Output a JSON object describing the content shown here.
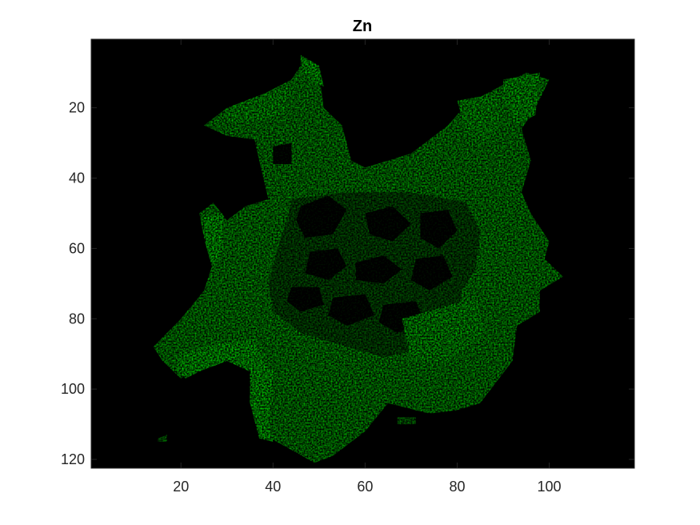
{
  "chart_data": {
    "type": "heatmap",
    "title": "Zn",
    "xlabel": "",
    "ylabel": "",
    "colormap": [
      "#000000",
      "#00ff00"
    ],
    "xlim": [
      0.5,
      118.5
    ],
    "ylim": [
      0.5,
      122.5
    ],
    "y_reversed": true,
    "x_ticks": [
      20,
      40,
      60,
      80,
      100
    ],
    "y_ticks": [
      20,
      40,
      60,
      80,
      100,
      120
    ],
    "x_tick_labels": [
      "20",
      "40",
      "60",
      "80",
      "100"
    ],
    "y_tick_labels": [
      "20",
      "40",
      "60",
      "80",
      "100",
      "120"
    ],
    "grid": false,
    "legend": "none",
    "intensity_regions": [
      {
        "shape": "polygon",
        "level": 0.8,
        "points": [
          [
            47,
            6
          ],
          [
            50,
            10
          ],
          [
            51,
            20
          ],
          [
            55,
            25
          ],
          [
            57,
            35
          ],
          [
            60,
            37
          ],
          [
            70,
            33
          ],
          [
            78,
            25
          ],
          [
            82,
            19
          ],
          [
            95,
            10
          ],
          [
            100,
            12
          ],
          [
            97,
            20
          ],
          [
            94,
            26
          ],
          [
            96,
            35
          ],
          [
            94,
            44
          ],
          [
            96,
            50
          ],
          [
            100,
            58
          ],
          [
            99,
            63
          ],
          [
            103,
            68
          ],
          [
            98,
            72
          ],
          [
            98,
            78
          ],
          [
            93,
            82
          ],
          [
            92,
            92
          ],
          [
            85,
            104
          ],
          [
            80,
            106
          ],
          [
            74,
            107
          ],
          [
            65,
            104
          ],
          [
            60,
            112
          ],
          [
            53,
            119
          ],
          [
            49,
            121
          ],
          [
            45,
            118
          ],
          [
            38,
            113
          ],
          [
            37,
            105
          ],
          [
            37,
            98
          ],
          [
            35,
            92
          ],
          [
            28,
            88
          ],
          [
            22,
            95
          ],
          [
            20,
            97
          ],
          [
            16,
            92
          ],
          [
            14,
            88
          ],
          [
            20,
            80
          ],
          [
            25,
            72
          ],
          [
            27,
            64
          ],
          [
            25,
            57
          ],
          [
            24,
            50
          ],
          [
            27,
            47
          ],
          [
            30,
            52
          ],
          [
            34,
            48
          ],
          [
            39,
            46
          ],
          [
            37,
            35
          ],
          [
            36,
            29
          ],
          [
            30,
            28
          ],
          [
            25,
            25
          ],
          [
            30,
            20
          ],
          [
            38,
            16
          ],
          [
            44,
            12
          ]
        ]
      },
      {
        "shape": "polygon",
        "level": 0.45,
        "points": [
          [
            44,
            46
          ],
          [
            56,
            44
          ],
          [
            70,
            44
          ],
          [
            82,
            47
          ],
          [
            85,
            55
          ],
          [
            84,
            66
          ],
          [
            81,
            72
          ],
          [
            80,
            81
          ],
          [
            74,
            88
          ],
          [
            64,
            91
          ],
          [
            56,
            88
          ],
          [
            46,
            84
          ],
          [
            40,
            78
          ],
          [
            39,
            70
          ],
          [
            41,
            60
          ],
          [
            43,
            52
          ]
        ]
      },
      {
        "shape": "polygon",
        "level": 0.05,
        "points": [
          [
            46,
            48
          ],
          [
            52,
            45
          ],
          [
            56,
            49
          ],
          [
            53,
            56
          ],
          [
            47,
            57
          ],
          [
            45,
            52
          ]
        ]
      },
      {
        "shape": "polygon",
        "level": 0.05,
        "points": [
          [
            60,
            50
          ],
          [
            66,
            48
          ],
          [
            70,
            53
          ],
          [
            66,
            58
          ],
          [
            61,
            56
          ]
        ]
      },
      {
        "shape": "polygon",
        "level": 0.05,
        "points": [
          [
            72,
            50
          ],
          [
            78,
            49
          ],
          [
            80,
            55
          ],
          [
            76,
            60
          ],
          [
            72,
            57
          ]
        ]
      },
      {
        "shape": "polygon",
        "level": 0.05,
        "points": [
          [
            48,
            61
          ],
          [
            54,
            60
          ],
          [
            56,
            65
          ],
          [
            52,
            69
          ],
          [
            47,
            67
          ]
        ]
      },
      {
        "shape": "polygon",
        "level": 0.05,
        "points": [
          [
            58,
            64
          ],
          [
            64,
            62
          ],
          [
            68,
            66
          ],
          [
            64,
            70
          ],
          [
            58,
            69
          ]
        ]
      },
      {
        "shape": "polygon",
        "level": 0.05,
        "points": [
          [
            71,
            63
          ],
          [
            77,
            62
          ],
          [
            79,
            68
          ],
          [
            74,
            72
          ],
          [
            70,
            69
          ]
        ]
      },
      {
        "shape": "polygon",
        "level": 0.05,
        "points": [
          [
            44,
            71
          ],
          [
            50,
            71
          ],
          [
            51,
            76
          ],
          [
            46,
            78
          ],
          [
            43,
            75
          ]
        ]
      },
      {
        "shape": "polygon",
        "level": 0.05,
        "points": [
          [
            53,
            74
          ],
          [
            60,
            73
          ],
          [
            62,
            79
          ],
          [
            56,
            82
          ],
          [
            52,
            79
          ]
        ]
      },
      {
        "shape": "polygon",
        "level": 0.05,
        "points": [
          [
            64,
            76
          ],
          [
            71,
            75
          ],
          [
            73,
            81
          ],
          [
            67,
            84
          ],
          [
            63,
            81
          ]
        ]
      },
      {
        "shape": "polygon",
        "level": 0.05,
        "points": [
          [
            40,
            31
          ],
          [
            44,
            30
          ],
          [
            44,
            36
          ],
          [
            40,
            36
          ]
        ]
      },
      {
        "shape": "polygon",
        "level": 1.0,
        "points": [
          [
            25,
            51
          ],
          [
            29,
            50
          ],
          [
            29,
            60
          ],
          [
            27,
            66
          ],
          [
            26,
            62
          ],
          [
            25,
            57
          ]
        ]
      },
      {
        "shape": "polygon",
        "level": 1.0,
        "points": [
          [
            20,
            90
          ],
          [
            28,
            87
          ],
          [
            36,
            86
          ],
          [
            38,
            92
          ],
          [
            35,
            95
          ],
          [
            30,
            92
          ],
          [
            24,
            95
          ],
          [
            21,
            97
          ],
          [
            19,
            94
          ]
        ]
      },
      {
        "shape": "polygon",
        "level": 1.0,
        "points": [
          [
            36,
            90
          ],
          [
            40,
            95
          ],
          [
            39,
            110
          ],
          [
            40,
            115
          ],
          [
            37,
            114
          ],
          [
            35,
            104
          ],
          [
            35,
            95
          ]
        ]
      },
      {
        "shape": "polygon",
        "level": 1.0,
        "points": [
          [
            46,
            5
          ],
          [
            50,
            8
          ],
          [
            51,
            14
          ],
          [
            48,
            12
          ],
          [
            46,
            8
          ]
        ]
      },
      {
        "shape": "polygon",
        "level": 0.95,
        "points": [
          [
            90,
            12
          ],
          [
            98,
            10
          ],
          [
            97,
            22
          ],
          [
            93,
            25
          ],
          [
            90,
            18
          ]
        ]
      },
      {
        "shape": "polygon",
        "level": 0.9,
        "points": [
          [
            30,
            20
          ],
          [
            38,
            16
          ],
          [
            44,
            14
          ],
          [
            42,
            22
          ],
          [
            36,
            24
          ],
          [
            30,
            24
          ]
        ]
      },
      {
        "shape": "polygon",
        "level": 0.9,
        "points": [
          [
            80,
            18
          ],
          [
            88,
            16
          ],
          [
            90,
            24
          ],
          [
            86,
            30
          ],
          [
            82,
            27
          ]
        ]
      },
      {
        "shape": "polygon",
        "level": 0.9,
        "points": [
          [
            68,
            80
          ],
          [
            84,
            74
          ],
          [
            86,
            84
          ],
          [
            78,
            92
          ],
          [
            70,
            92
          ]
        ]
      },
      {
        "shape": "polygon",
        "level": 0.6,
        "points": [
          [
            15,
            114
          ],
          [
            17,
            113
          ],
          [
            17,
            115
          ],
          [
            15,
            115
          ]
        ]
      },
      {
        "shape": "polygon",
        "level": 0.6,
        "points": [
          [
            67,
            108
          ],
          [
            71,
            108
          ],
          [
            71,
            110
          ],
          [
            67,
            110
          ]
        ]
      }
    ]
  }
}
